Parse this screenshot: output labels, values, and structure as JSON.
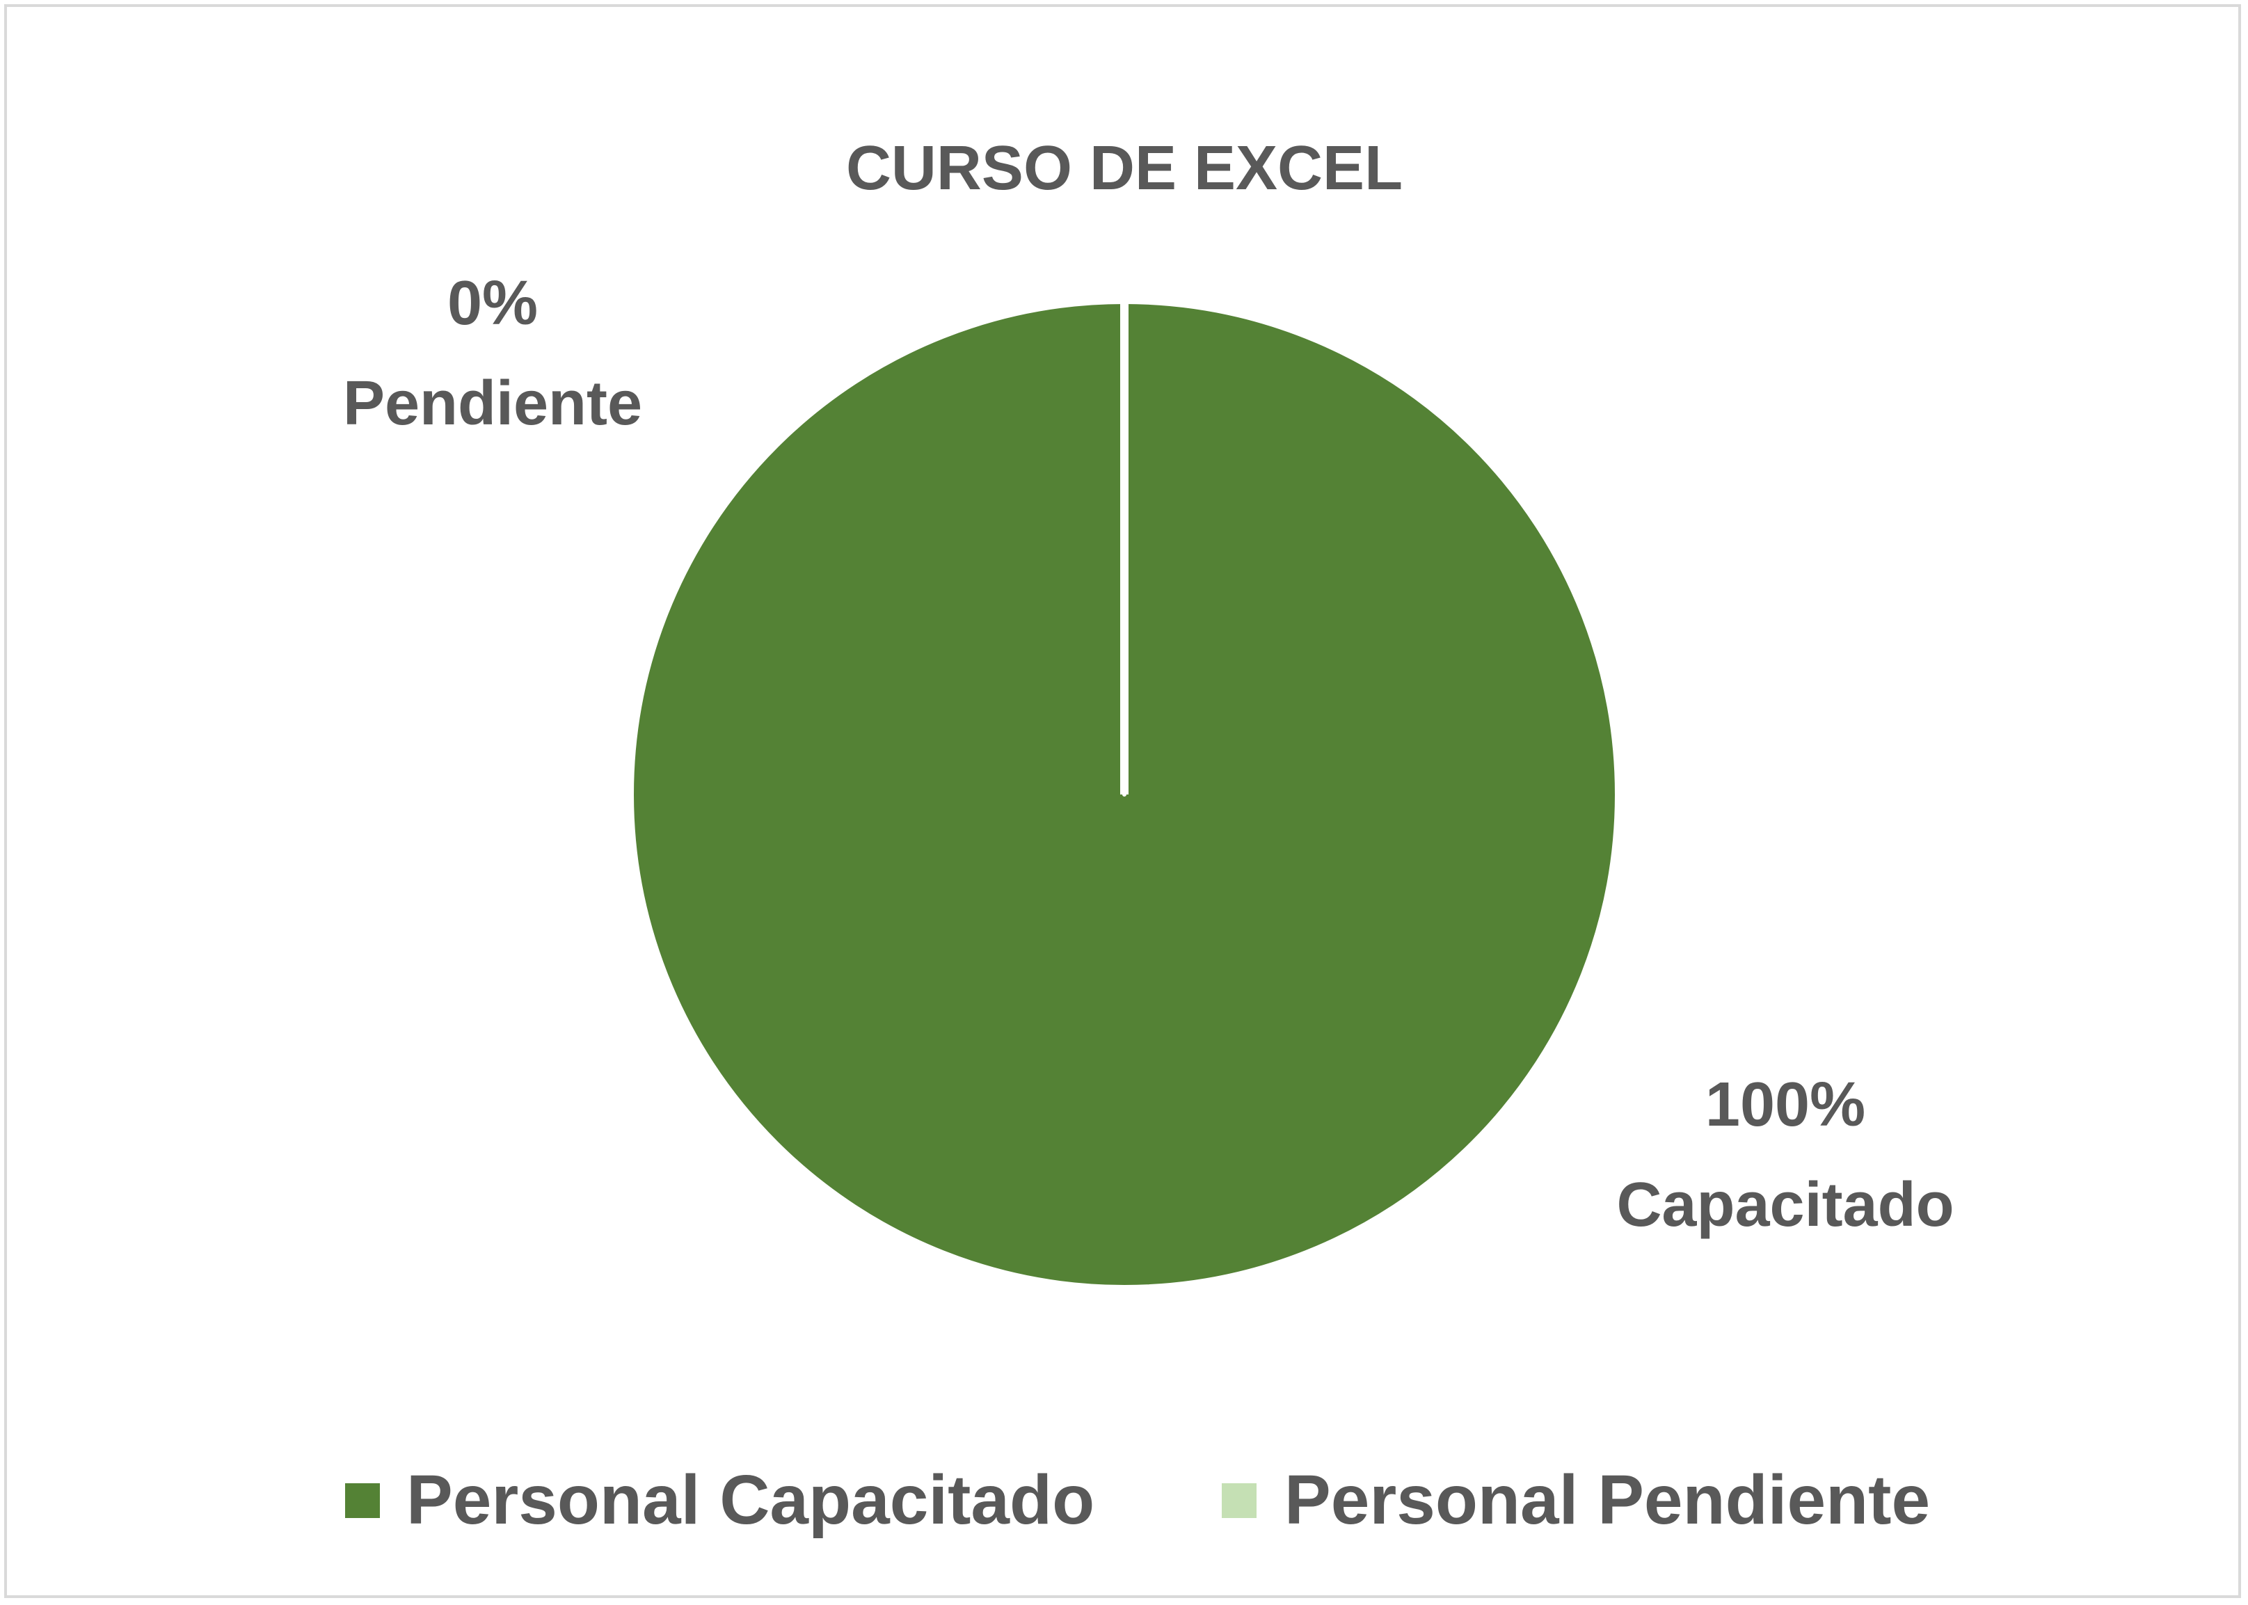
{
  "chart_data": {
    "type": "pie",
    "title": "CURSO DE EXCEL",
    "slices": [
      {
        "name": "Personal Capacitado",
        "value": 100,
        "percent_label": "100%",
        "category_label": "Capacitado",
        "color": "#548235"
      },
      {
        "name": "Personal Pendiente",
        "value": 0,
        "percent_label": "0%",
        "category_label": "Pendiente",
        "color": "#c5e0b4"
      }
    ],
    "legend": {
      "position": "bottom",
      "items": [
        "Personal Capacitado",
        "Personal Pendiente"
      ]
    },
    "colors": {
      "text": "#595959",
      "border": "#d9d9d9",
      "slice_border": "#ffffff"
    }
  }
}
